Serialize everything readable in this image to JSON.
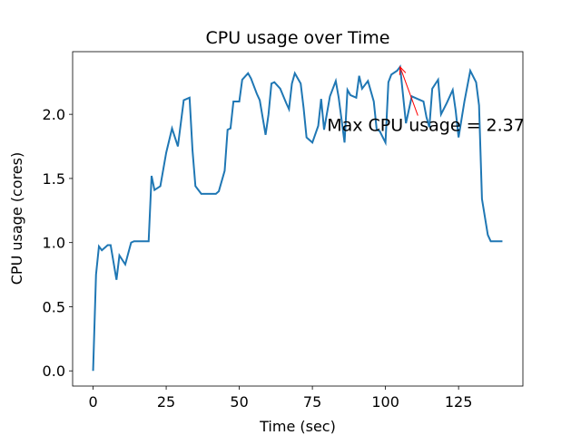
{
  "chart_data": {
    "type": "line",
    "title": "CPU usage over Time",
    "xlabel": "Time (sec)",
    "ylabel": "CPU usage (cores)",
    "x": [
      0,
      1,
      2,
      3,
      5,
      6,
      8,
      9,
      11,
      13,
      14,
      17,
      19,
      20,
      21,
      23,
      25,
      27,
      29,
      31,
      33,
      34,
      35,
      37,
      39,
      42,
      43,
      45,
      46,
      47,
      48,
      50,
      51,
      53,
      54,
      56,
      57,
      59,
      60,
      61,
      62,
      64,
      66,
      67,
      68,
      69,
      71,
      72,
      73,
      75,
      77,
      78,
      79,
      81,
      83,
      84,
      86,
      87,
      88,
      90,
      91,
      92,
      94,
      96,
      97,
      98,
      100,
      101,
      102,
      104,
      105,
      107,
      109,
      111,
      113,
      114,
      115,
      116,
      118,
      119,
      121,
      123,
      124,
      125,
      127,
      129,
      131,
      132,
      133,
      135,
      136,
      138,
      140
    ],
    "values": [
      0.0,
      0.75,
      0.97,
      0.94,
      0.98,
      0.98,
      0.71,
      0.9,
      0.83,
      1.0,
      1.01,
      1.01,
      1.01,
      1.52,
      1.41,
      1.44,
      1.7,
      1.89,
      1.75,
      2.11,
      2.13,
      1.72,
      1.44,
      1.38,
      1.38,
      1.38,
      1.4,
      1.56,
      1.88,
      1.89,
      2.1,
      2.1,
      2.27,
      2.32,
      2.28,
      2.16,
      2.11,
      1.84,
      2.0,
      2.24,
      2.25,
      2.2,
      2.09,
      2.04,
      2.24,
      2.32,
      2.24,
      2.05,
      1.82,
      1.78,
      1.91,
      2.12,
      1.88,
      2.14,
      2.26,
      2.13,
      1.78,
      2.19,
      2.15,
      2.13,
      2.3,
      2.2,
      2.26,
      2.1,
      1.88,
      1.87,
      1.78,
      2.25,
      2.31,
      2.34,
      2.37,
      1.93,
      2.14,
      2.12,
      2.1,
      1.98,
      1.9,
      2.2,
      2.27,
      2.0,
      2.09,
      2.19,
      2.03,
      1.82,
      2.1,
      2.34,
      2.25,
      2.07,
      1.34,
      1.06,
      1.01,
      1.01,
      1.01
    ],
    "color": "#1f77b4",
    "xlim": [
      -7,
      147
    ],
    "ylim": [
      -0.1185,
      2.4885
    ],
    "xticks": [
      0,
      25,
      50,
      75,
      100,
      125
    ],
    "yticks": [
      {
        "value": 0,
        "label": "0.0"
      },
      0.5,
      {
        "value": 1,
        "label": "1.0"
      },
      1.5,
      {
        "value": 2,
        "label": "2.0"
      }
    ],
    "annotation": {
      "text": "Max CPU usage = 2.37",
      "xy": [
        105,
        2.37
      ],
      "xytext": [
        80,
        1.87
      ],
      "color": "#ff0000"
    }
  }
}
